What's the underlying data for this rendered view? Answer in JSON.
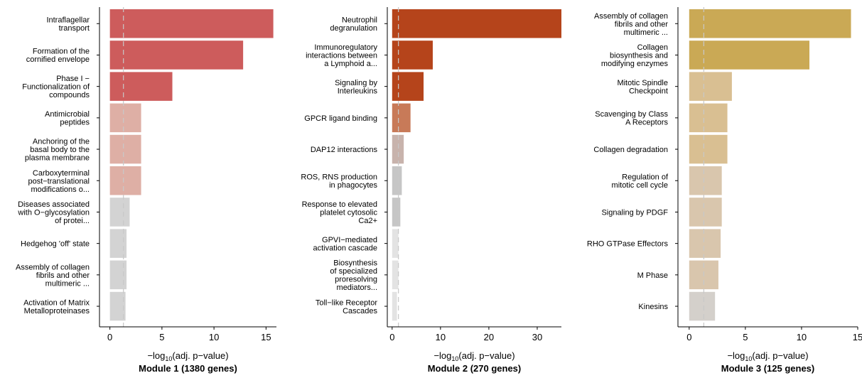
{
  "threshold_value": 1.3,
  "threshold_color": "#c8c8c8",
  "chart_data": [
    {
      "type": "bar",
      "orientation": "horizontal",
      "xlabel_prefix": "−log",
      "xlabel_sub": "10",
      "xlabel_suffix": "(adj. p−value)",
      "title": "Module 1 (1380 genes)",
      "xlim": [
        -1,
        16
      ],
      "ticks": [
        0,
        5,
        10,
        15
      ],
      "categories": [
        [
          "Intraflagellar",
          "transport"
        ],
        [
          "Formation of the",
          "cornified envelope"
        ],
        [
          "Phase I −",
          "Functionalization of",
          "compounds"
        ],
        [
          "Antimicrobial",
          "peptides"
        ],
        [
          "Anchoring of the",
          "basal body to the",
          "plasma membrane"
        ],
        [
          "Carboxyterminal",
          "post−translational",
          "modifications o..."
        ],
        [
          "Diseases associated",
          "with O−glycosylation",
          "of protei..."
        ],
        [
          "Hedgehog 'off' state"
        ],
        [
          "Assembly of collagen",
          "fibrils and other",
          "multimeric ..."
        ],
        [
          "Activation of Matrix",
          "Metalloproteinases"
        ]
      ],
      "values": [
        15.7,
        12.8,
        6.0,
        3.0,
        3.0,
        3.0,
        1.9,
        1.6,
        1.6,
        1.5
      ],
      "colors": [
        "#cd5c5c",
        "#cd5c5c",
        "#cd5c5c",
        "#deafa5",
        "#deafa5",
        "#deafa5",
        "#d3d3d3",
        "#d3d3d3",
        "#d3d3d3",
        "#d3d3d3"
      ]
    },
    {
      "type": "bar",
      "orientation": "horizontal",
      "xlabel_prefix": "−log",
      "xlabel_sub": "10",
      "xlabel_suffix": "(adj. p−value)",
      "title": "Module 2 (270 genes)",
      "xlim": [
        -1,
        35
      ],
      "ticks": [
        0,
        10,
        20,
        30
      ],
      "categories": [
        [
          "Neutrophil",
          "degranulation"
        ],
        [
          "Immunoregulatory",
          "interactions between",
          "a Lymphoid a..."
        ],
        [
          "Signaling by",
          "Interleukins"
        ],
        [
          "GPCR ligand binding"
        ],
        [
          "DAP12 interactions"
        ],
        [
          "ROS, RNS production",
          "in phagocytes"
        ],
        [
          "Response to elevated",
          "platelet cytosolic",
          "Ca2+"
        ],
        [
          "GPVI−mediated",
          "activation cascade"
        ],
        [
          "Biosynthesis",
          "of specialized",
          "proresolving",
          "mediators..."
        ],
        [
          "Toll−like Receptor",
          "Cascades"
        ]
      ],
      "values": [
        35.0,
        8.4,
        6.5,
        3.8,
        2.4,
        2.0,
        1.7,
        1.3,
        1.3,
        1.0
      ],
      "colors": [
        "#b5441b",
        "#b5441b",
        "#b5441b",
        "#c87a58",
        "#c8b3ac",
        "#c6c6c6",
        "#c6c6c6",
        "#e3e3e3",
        "#e3e3e3",
        "#e3e3e3"
      ]
    },
    {
      "type": "bar",
      "orientation": "horizontal",
      "xlabel_prefix": "−log",
      "xlabel_sub": "10",
      "xlabel_suffix": "(adj. p−value)",
      "title": "Module 3 (125 genes)",
      "xlim": [
        -1,
        15
      ],
      "ticks": [
        0,
        5,
        10,
        15
      ],
      "categories": [
        [
          "Assembly of collagen",
          "fibrils and other",
          "multimeric ..."
        ],
        [
          "Collagen",
          "biosynthesis and",
          "modifying enzymes"
        ],
        [
          "Mitotic Spindle",
          "Checkpoint"
        ],
        [
          "Scavenging by Class",
          "A Receptors"
        ],
        [
          "Collagen degradation"
        ],
        [
          "Regulation of",
          "mitotic cell cycle"
        ],
        [
          "Signaling by PDGF"
        ],
        [
          "RHO GTPase Effectors"
        ],
        [
          "M Phase"
        ],
        [
          "Kinesins"
        ]
      ],
      "values": [
        14.4,
        10.7,
        3.8,
        3.4,
        3.4,
        2.9,
        2.9,
        2.8,
        2.6,
        2.3
      ],
      "colors": [
        "#caa955",
        "#caa955",
        "#d9bf92",
        "#d9bf92",
        "#d9bf92",
        "#d9c6ad",
        "#d9c6ad",
        "#d9c6ad",
        "#d9c6ad",
        "#d4d0cb"
      ]
    }
  ]
}
